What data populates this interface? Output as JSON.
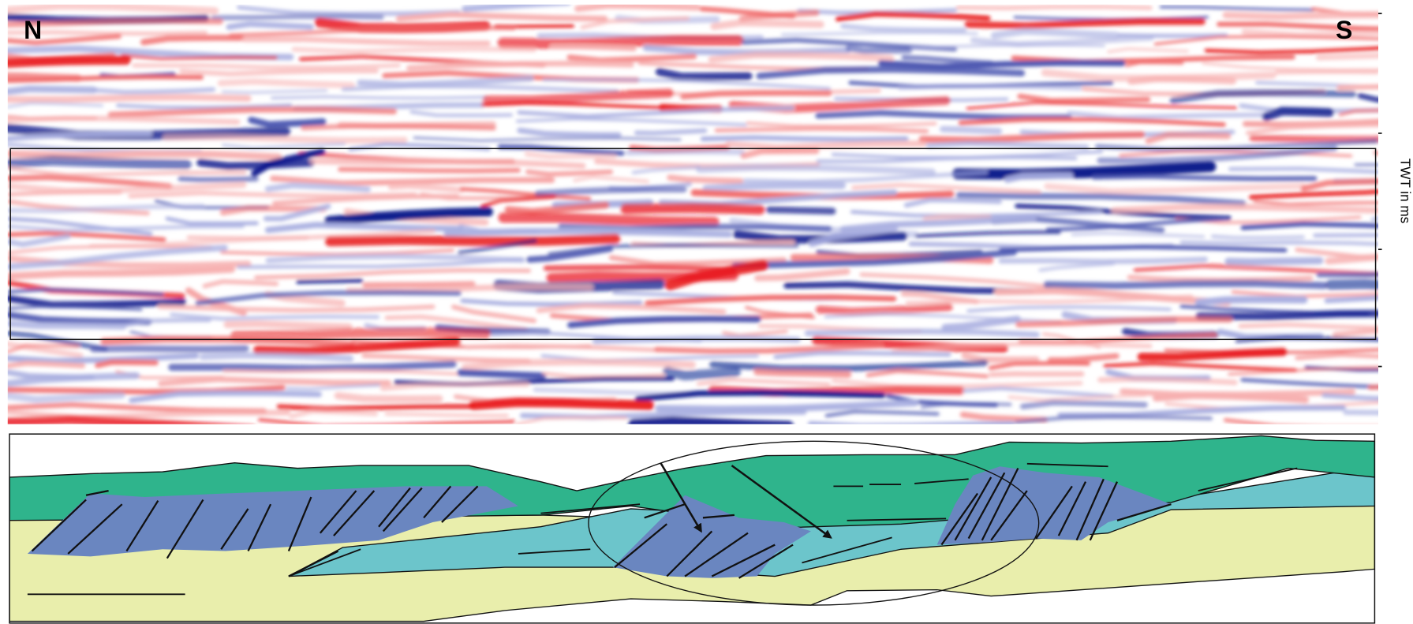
{
  "labels": {
    "north": "N",
    "south": "S",
    "axis": "TWT in ms"
  }
}
